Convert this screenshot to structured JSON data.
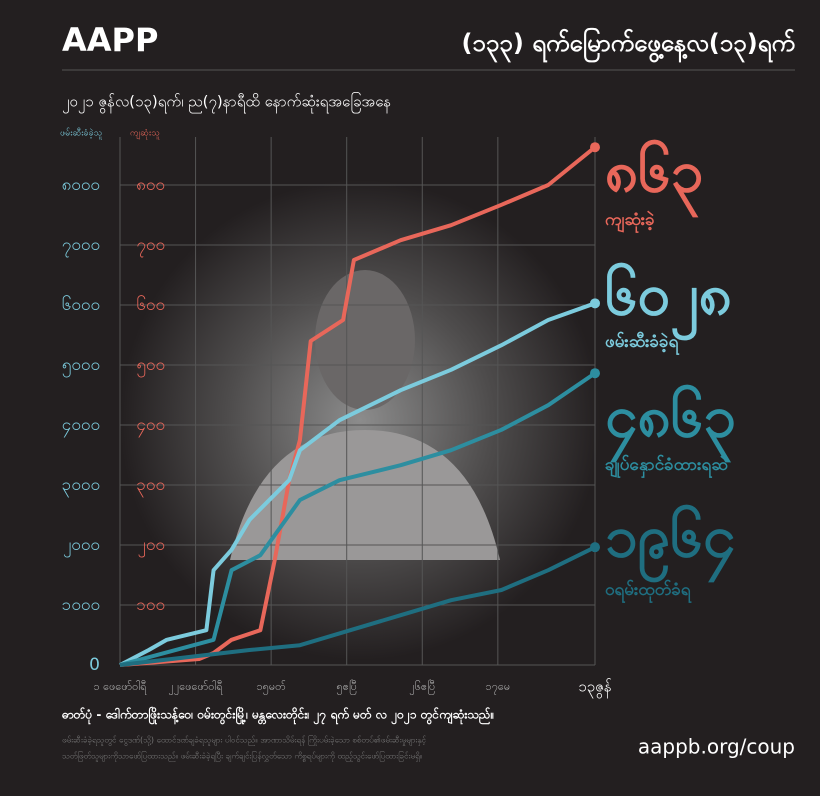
{
  "chart_data": {
    "type": "line",
    "title": "AAPP",
    "header": "(၁၃၃) ရက်မြောက်ဖွေ့နေ့လ(၁၃)ရက်",
    "subtitle": "၂၀၂၁ ဇွန်လ(၁၃)ရက်၊ ည(၇)နာရီထိ နောက်ဆုံးရအခြေအနေ",
    "ylabel": "ဖမ်းဆီးခံခဲ့သူ",
    "y2label": "ကျဆုံးသူ",
    "xlim": [
      0,
      132
    ],
    "xticks": [
      {
        "value": 0,
        "label": "၁ ဖေဖော်ဝါရီ"
      },
      {
        "value": 21,
        "label": "၂၂ဖေဖော်ဝါရီ"
      },
      {
        "value": 42,
        "label": "၁၅မတ်"
      },
      {
        "value": 63,
        "label": "၅ဧပြီ"
      },
      {
        "value": 84,
        "label": "၂၆ဧပြီ"
      },
      {
        "value": 105,
        "label": "၁၇မေ"
      },
      {
        "value": 132,
        "label": "၁၃ဇွန်"
      }
    ],
    "ylim": [
      0,
      8800
    ],
    "yticks": [
      {
        "value": 0,
        "label": "0"
      },
      {
        "value": 1000,
        "label": "၁၀၀၀"
      },
      {
        "value": 2000,
        "label": "၂၀၀၀"
      },
      {
        "value": 3000,
        "label": "၃၀၀၀"
      },
      {
        "value": 4000,
        "label": "၄၀၀၀"
      },
      {
        "value": 5000,
        "label": "၅၀၀၀"
      },
      {
        "value": 6000,
        "label": "၆၀၀၀"
      },
      {
        "value": 7000,
        "label": "၇၀၀၀"
      },
      {
        "value": 8000,
        "label": "၈၀၀၀"
      }
    ],
    "y2lim": [
      0,
      880
    ],
    "y2ticks": [
      {
        "value": 100,
        "label": "၁၀၀"
      },
      {
        "value": 200,
        "label": "၂၀၀"
      },
      {
        "value": 300,
        "label": "၃၀၀"
      },
      {
        "value": 400,
        "label": "၄၀၀"
      },
      {
        "value": 500,
        "label": "၅၀၀"
      },
      {
        "value": 600,
        "label": "၆၀၀"
      },
      {
        "value": 700,
        "label": "၇၀၀"
      },
      {
        "value": 800,
        "label": "၈၀၀"
      }
    ],
    "grid": true,
    "series": [
      {
        "name": "ကျဆုံးခဲ့",
        "color": "#e8675a",
        "axis": "y2",
        "x": [
          0,
          22,
          26,
          31,
          39,
          43,
          47,
          50,
          53,
          62,
          65,
          78,
          92,
          106,
          119,
          132
        ],
        "values": [
          0,
          10,
          20,
          42,
          58,
          175,
          308,
          375,
          540,
          575,
          675,
          708,
          733,
          767,
          800,
          863
        ],
        "end_label": "၈၆၃"
      },
      {
        "name": "ဖမ်းဆီးခံခဲ့ရ",
        "color": "#7ccbdd",
        "x": [
          0,
          8,
          13,
          24,
          26,
          31,
          36,
          47,
          50,
          61,
          78,
          92,
          106,
          119,
          132
        ],
        "values": [
          0,
          250,
          420,
          580,
          1580,
          1920,
          2420,
          3080,
          3580,
          4080,
          4580,
          4920,
          5330,
          5750,
          6028
        ],
        "end_label": "၆၀၂၈"
      },
      {
        "name": "ချုပ်နှောင်ခံထားရဆဲ",
        "color": "#2d8ea0",
        "x": [
          0,
          26,
          31,
          39,
          50,
          61,
          78,
          92,
          106,
          119,
          132
        ],
        "values": [
          0,
          420,
          1580,
          1830,
          2750,
          3080,
          3330,
          3580,
          3920,
          4330,
          4863
        ],
        "end_label": "၄၈၆၃"
      },
      {
        "name": "ဝရမ်းထုတ်ခံရ",
        "color": "#1f6e80",
        "x": [
          0,
          36,
          50,
          64,
          78,
          92,
          106,
          119,
          132
        ],
        "values": [
          0,
          250,
          330,
          580,
          830,
          1080,
          1250,
          1580,
          1964
        ],
        "end_label": "၁၉၆၄"
      }
    ],
    "caption": "ဓာတ်ပုံ - ဒေါက်တာဖြိုးသန့်ဝေ၊ ဝမ်းတွင်းမြို့၊ မန္တလေးတိုင်း၊ ၂၇ ရက် မတ် လ ၂၀၂၁ တွင်ကျဆုံးသည်။",
    "footnote": [
      "ဖမ်းဆီးခံခဲ့ရသူတွင် ငွေဒဏ်(သို့) ထောင်ဒဏ်ချခံရသူများ ပါဝင်သည်။ အာဏာသိမ်းရန် ကြိုးပမ်းခဲ့သော စစ်တပ်၏ဖမ်းဆီးမှုများနှင့်",
      "သတ်ဖြတ်သူများကိုသာဖော်ပြထားသည်။ ဖမ်းဆီးခံခဲ့ရပြီး ချက်ချင်းပြန်လွှတ်သော ကိစ္စရပ်များကို ထည့်သွင်းဖော်ပြထားခြင်းမရှိ။"
    ],
    "url": "aappb.org/coup"
  }
}
